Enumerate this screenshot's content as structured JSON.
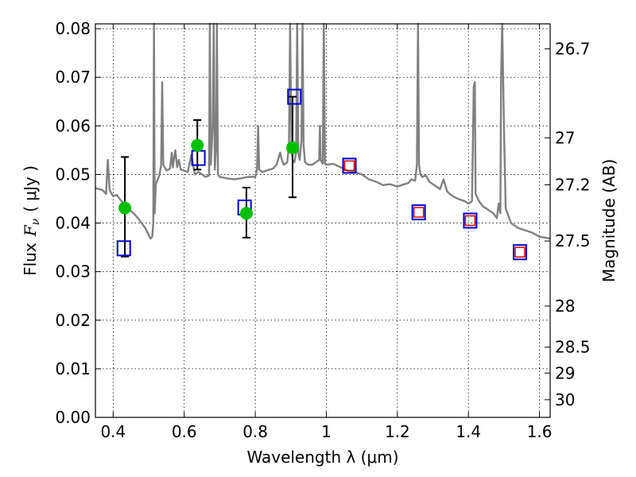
{
  "chart_data": {
    "type": "scatter",
    "title": "",
    "xlabel": "Wavelength  λ (μm)",
    "ylabel": "Flux  F_ν  ( μJy )",
    "ylabel_parts": {
      "prefix": "Flux",
      "symbol": "F",
      "subscript": "ν",
      "unit": "( μJy )"
    },
    "ylabel_right": "Magnitude (AB)",
    "xlim": [
      0.35,
      1.63
    ],
    "ylim": [
      0.0,
      0.081
    ],
    "grid": true,
    "x_ticks": [
      0.4,
      0.6,
      0.8,
      1.0,
      1.2,
      1.4,
      1.6
    ],
    "x_tick_labels": [
      "0.4",
      "0.6",
      "0.8",
      "1",
      "1.2",
      "1.4",
      "1.6"
    ],
    "y_ticks": [
      0.0,
      0.01,
      0.02,
      0.03,
      0.04,
      0.05,
      0.06,
      0.07,
      0.08
    ],
    "y_tick_labels": [
      "0.00",
      "0.01",
      "0.02",
      "0.03",
      "0.04",
      "0.05",
      "0.06",
      "0.07",
      "0.08"
    ],
    "right_ticks": [
      26.7,
      27,
      27.2,
      27.5,
      28,
      28.5,
      29,
      30
    ],
    "right_tick_labels": [
      "26.7",
      "27",
      "27.2",
      "27.5",
      "28",
      "28.5",
      "29",
      "30"
    ],
    "colors": {
      "spectrum": "#808080",
      "observed": "#00c000",
      "model_box": "#0000cc",
      "model_inner": "#dd0000",
      "errorbar": "#000000"
    },
    "series": [
      {
        "kind": "line",
        "values_xy": [
          [
            0.35,
            0.0472
          ],
          [
            0.37,
            0.0468
          ],
          [
            0.38,
            0.046
          ],
          [
            0.385,
            0.053
          ],
          [
            0.39,
            0.0468
          ],
          [
            0.4,
            0.0455
          ],
          [
            0.41,
            0.0458
          ],
          [
            0.42,
            0.0448
          ],
          [
            0.43,
            0.044
          ],
          [
            0.44,
            0.043
          ],
          [
            0.45,
            0.0425
          ],
          [
            0.46,
            0.0418
          ],
          [
            0.47,
            0.041
          ],
          [
            0.48,
            0.04
          ],
          [
            0.49,
            0.039
          ],
          [
            0.5,
            0.0375
          ],
          [
            0.505,
            0.0368
          ],
          [
            0.51,
            0.0372
          ],
          [
            0.513,
            0.04
          ],
          [
            0.515,
            0.082
          ],
          [
            0.517,
            0.042
          ],
          [
            0.52,
            0.048
          ],
          [
            0.53,
            0.0498
          ],
          [
            0.535,
            0.052
          ],
          [
            0.538,
            0.069
          ],
          [
            0.541,
            0.052
          ],
          [
            0.55,
            0.0508
          ],
          [
            0.56,
            0.0512
          ],
          [
            0.565,
            0.0545
          ],
          [
            0.568,
            0.0515
          ],
          [
            0.575,
            0.055
          ],
          [
            0.58,
            0.0515
          ],
          [
            0.585,
            0.053
          ],
          [
            0.59,
            0.051
          ],
          [
            0.6,
            0.0508
          ],
          [
            0.61,
            0.0505
          ],
          [
            0.62,
            0.054
          ],
          [
            0.63,
            0.05
          ],
          [
            0.64,
            0.0505
          ],
          [
            0.65,
            0.05
          ],
          [
            0.66,
            0.0495
          ],
          [
            0.67,
            0.0498
          ],
          [
            0.672,
            0.082
          ],
          [
            0.675,
            0.052
          ],
          [
            0.68,
            0.06
          ],
          [
            0.683,
            0.082
          ],
          [
            0.686,
            0.051
          ],
          [
            0.69,
            0.056
          ],
          [
            0.692,
            0.082
          ],
          [
            0.695,
            0.05
          ],
          [
            0.7,
            0.0495
          ],
          [
            0.72,
            0.0492
          ],
          [
            0.74,
            0.049
          ],
          [
            0.76,
            0.0492
          ],
          [
            0.78,
            0.0495
          ],
          [
            0.8,
            0.0495
          ],
          [
            0.805,
            0.051
          ],
          [
            0.808,
            0.06
          ],
          [
            0.811,
            0.051
          ],
          [
            0.82,
            0.0505
          ],
          [
            0.84,
            0.051
          ],
          [
            0.85,
            0.0512
          ],
          [
            0.86,
            0.052
          ],
          [
            0.87,
            0.0545
          ],
          [
            0.875,
            0.053
          ],
          [
            0.88,
            0.052
          ],
          [
            0.89,
            0.0525
          ],
          [
            0.895,
            0.056
          ],
          [
            0.898,
            0.082
          ],
          [
            0.902,
            0.056
          ],
          [
            0.905,
            0.053
          ],
          [
            0.91,
            0.0525
          ],
          [
            0.915,
            0.0545
          ],
          [
            0.918,
            0.082
          ],
          [
            0.921,
            0.0545
          ],
          [
            0.925,
            0.053
          ],
          [
            0.93,
            0.057
          ],
          [
            0.933,
            0.082
          ],
          [
            0.936,
            0.056
          ],
          [
            0.94,
            0.0525
          ],
          [
            0.95,
            0.052
          ],
          [
            0.96,
            0.052
          ],
          [
            0.97,
            0.0525
          ],
          [
            0.98,
            0.053
          ],
          [
            0.982,
            0.06
          ],
          [
            0.984,
            0.053
          ],
          [
            0.99,
            0.0522
          ],
          [
            0.993,
            0.082
          ],
          [
            0.996,
            0.0522
          ],
          [
            1.0,
            0.052
          ],
          [
            1.02,
            0.0522
          ],
          [
            1.03,
            0.0518
          ],
          [
            1.04,
            0.0515
          ],
          [
            1.06,
            0.0508
          ],
          [
            1.08,
            0.0505
          ],
          [
            1.1,
            0.05
          ],
          [
            1.12,
            0.049
          ],
          [
            1.14,
            0.0485
          ],
          [
            1.16,
            0.0478
          ],
          [
            1.18,
            0.048
          ],
          [
            1.2,
            0.0475
          ],
          [
            1.22,
            0.048
          ],
          [
            1.23,
            0.0482
          ],
          [
            1.24,
            0.049
          ],
          [
            1.25,
            0.0487
          ],
          [
            1.255,
            0.052
          ],
          [
            1.258,
            0.082
          ],
          [
            1.261,
            0.052
          ],
          [
            1.265,
            0.05
          ],
          [
            1.27,
            0.0495
          ],
          [
            1.28,
            0.0498
          ],
          [
            1.29,
            0.0485
          ],
          [
            1.3,
            0.048
          ],
          [
            1.32,
            0.047
          ],
          [
            1.33,
            0.049
          ],
          [
            1.34,
            0.0465
          ],
          [
            1.35,
            0.0458
          ],
          [
            1.37,
            0.045
          ],
          [
            1.39,
            0.0445
          ],
          [
            1.4,
            0.044
          ],
          [
            1.41,
            0.0445
          ],
          [
            1.415,
            0.068
          ],
          [
            1.418,
            0.069
          ],
          [
            1.42,
            0.046
          ],
          [
            1.43,
            0.0445
          ],
          [
            1.44,
            0.0435
          ],
          [
            1.45,
            0.043
          ],
          [
            1.46,
            0.0425
          ],
          [
            1.47,
            0.042
          ],
          [
            1.48,
            0.041
          ],
          [
            1.485,
            0.044
          ],
          [
            1.49,
            0.042
          ],
          [
            1.492,
            0.07
          ],
          [
            1.495,
            0.082
          ],
          [
            1.5,
            0.06
          ],
          [
            1.505,
            0.043
          ],
          [
            1.52,
            0.04
          ],
          [
            1.54,
            0.039
          ],
          [
            1.56,
            0.0385
          ],
          [
            1.58,
            0.038
          ],
          [
            1.6,
            0.0372
          ],
          [
            1.63,
            0.0368
          ]
        ]
      },
      {
        "kind": "markers-model",
        "values_xy": [
          [
            0.43,
            0.0348
          ],
          [
            0.64,
            0.0534
          ],
          [
            0.77,
            0.0432
          ],
          [
            0.91,
            0.066
          ],
          [
            1.065,
            0.0518
          ],
          [
            1.26,
            0.0422
          ],
          [
            1.405,
            0.0405
          ],
          [
            1.545,
            0.034
          ]
        ]
      },
      {
        "kind": "markers-observed",
        "values_xy": [
          [
            0.433,
            0.0431
          ],
          [
            0.637,
            0.056
          ],
          [
            0.775,
            0.042
          ],
          [
            0.905,
            0.0555
          ]
        ],
        "yerr_low": [
          0.01,
          0.005,
          0.005,
          0.0102
        ],
        "yerr_high": [
          0.0105,
          0.0052,
          0.0053,
          0.0105
        ]
      }
    ]
  }
}
